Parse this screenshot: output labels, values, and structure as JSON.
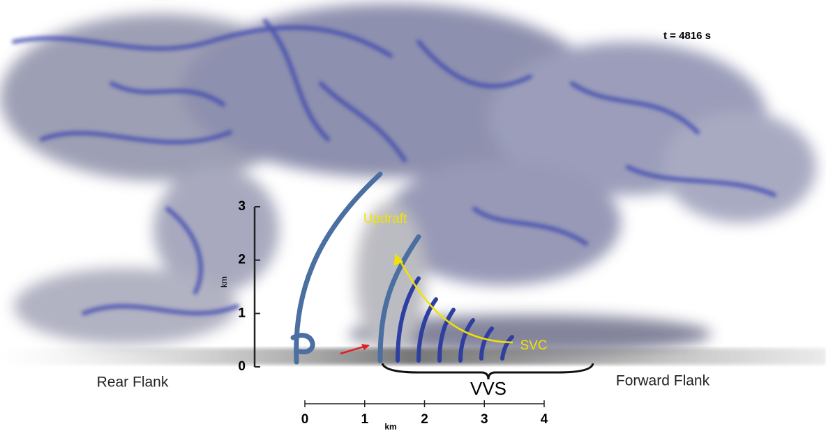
{
  "time_label": "t = 4816 s",
  "labels": {
    "updraft": "Updraft",
    "svc": "SVC",
    "vvs": "VVS",
    "rear_flank": "Rear Flank",
    "forward_flank": "Forward Flank"
  },
  "vertical_scale": {
    "unit": "km",
    "ticks": [
      0,
      1,
      2,
      3
    ]
  },
  "horizontal_scale": {
    "unit": "km",
    "ticks": [
      0,
      1,
      2,
      3,
      4
    ]
  }
}
